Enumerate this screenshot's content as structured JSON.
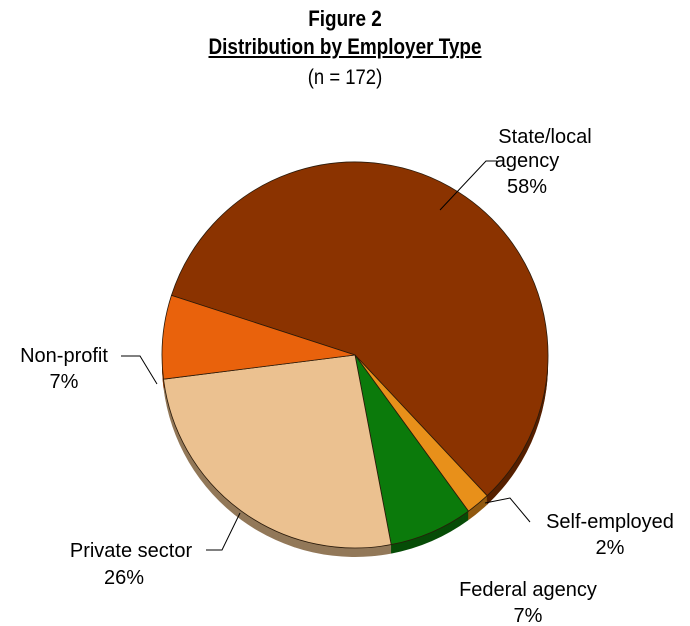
{
  "chart_data": {
    "type": "pie",
    "title": "Figure 2",
    "subtitle": "Distribution by Employer Type",
    "note": "(n = 172)",
    "slices": [
      {
        "label": "State/local agency",
        "label_lines": [
          "State/local",
          "agency"
        ],
        "pct_label": "58%",
        "value": 58,
        "color": "#8B3300"
      },
      {
        "label": "Self-employed",
        "label_lines": [
          "Self-employed"
        ],
        "pct_label": "2%",
        "value": 2,
        "color": "#E8901A"
      },
      {
        "label": "Federal agency",
        "label_lines": [
          "Federal agency"
        ],
        "pct_label": "7%",
        "value": 7,
        "color": "#0B7A0B"
      },
      {
        "label": "Private sector",
        "label_lines": [
          "Private sector"
        ],
        "pct_label": "26%",
        "value": 26,
        "color": "#EBC190"
      },
      {
        "label": "Non-profit",
        "label_lines": [
          "Non-profit"
        ],
        "pct_label": "7%",
        "value": 7,
        "color": "#E9620C"
      }
    ],
    "legend": "none"
  }
}
